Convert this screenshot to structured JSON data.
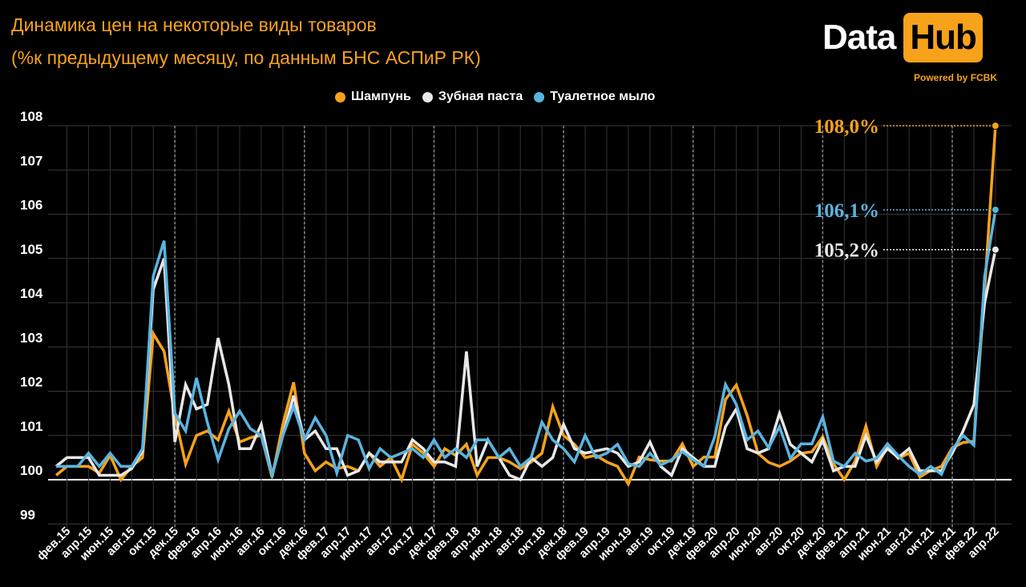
{
  "header": {
    "title_line1": "Динамика цен на некоторые виды товаров",
    "title_line2": "(%к предыдущему месяцу, по данным БНС АСПиР РК)"
  },
  "logo": {
    "part1": "Data",
    "part2": "Hub",
    "powered": "Powered by FCBK"
  },
  "colors": {
    "shampoo": "#f7a21b",
    "toothpaste": "#e8e8e8",
    "soap": "#5ab4e0",
    "accent": "#f7a21b"
  },
  "chart_data": {
    "type": "line",
    "title": "Динамика цен на некоторые виды товаров (%к предыдущему месяцу, по данным БНС АСПиР РК)",
    "xlabel": "",
    "ylabel": "",
    "ylim": [
      99,
      108
    ],
    "y_ticks": [
      "99",
      "100",
      "101",
      "102",
      "103",
      "104",
      "105",
      "106",
      "107",
      "108"
    ],
    "x_start": "янв.15",
    "x_tick_labels": [
      "фев.15",
      "апр.15",
      "июн.15",
      "авг.15",
      "окт.15",
      "дек.15",
      "фев.16",
      "апр.16",
      "июн.16",
      "авг.16",
      "окт.16",
      "дек.16",
      "фев.17",
      "апр.17",
      "июн.17",
      "авг.17",
      "окт.17",
      "дек.17",
      "фев.18",
      "апр.18",
      "июн.18",
      "авг.18",
      "окт.18",
      "дек.18",
      "фев.19",
      "апр.19",
      "июн.19",
      "авг.19",
      "окт.19",
      "дек.19",
      "фев.20",
      "апр.20",
      "июн.20",
      "авг.20",
      "окт.20",
      "дек.20",
      "фев.21",
      "апр.21",
      "июн.21",
      "авг.21",
      "окт.21",
      "дек.21",
      "фев.22",
      "апр.22"
    ],
    "legend_position": "top-center",
    "grid": true,
    "series": [
      {
        "name": "Шампунь",
        "color": "#f7a21b",
        "end_label": "108,0%",
        "values": [
          100.1,
          100.3,
          100.3,
          100.3,
          100.15,
          100.55,
          100.0,
          100.3,
          100.5,
          103.3,
          102.9,
          101.45,
          100.35,
          101.0,
          101.1,
          100.9,
          101.55,
          100.85,
          100.95,
          101.0,
          100.05,
          101.25,
          102.2,
          100.6,
          100.2,
          100.4,
          100.25,
          100.3,
          100.2,
          100.6,
          100.3,
          100.5,
          100.0,
          100.8,
          100.6,
          100.3,
          100.7,
          100.55,
          100.8,
          100.1,
          100.5,
          100.5,
          100.4,
          100.25,
          100.4,
          100.6,
          101.65,
          101.0,
          100.8,
          100.5,
          100.55,
          100.4,
          100.3,
          99.9,
          100.51,
          100.45,
          100.42,
          100.42,
          100.81,
          100.3,
          100.51,
          100.51,
          101.81,
          102.14,
          101.45,
          100.6,
          100.39,
          100.3,
          100.42,
          100.6,
          100.63,
          100.97,
          100.36,
          100.0,
          100.42,
          101.21,
          100.3,
          100.75,
          100.48,
          100.6,
          100.06,
          100.21,
          100.3,
          100.72,
          100.84,
          100.87,
          104.3,
          108.0
        ]
      },
      {
        "name": "Зубная паста",
        "color": "#e8e8e8",
        "end_label": "105,2%",
        "values": [
          100.3,
          100.5,
          100.5,
          100.5,
          100.1,
          100.1,
          100.1,
          100.25,
          100.65,
          104.3,
          105.0,
          100.85,
          102.15,
          101.6,
          101.7,
          103.2,
          102.15,
          100.7,
          100.7,
          101.25,
          100.1,
          101.0,
          101.9,
          100.9,
          101.1,
          100.7,
          100.7,
          100.1,
          100.2,
          100.6,
          100.4,
          100.4,
          100.4,
          100.9,
          100.7,
          100.4,
          100.4,
          100.3,
          102.9,
          100.3,
          100.9,
          100.5,
          100.1,
          100.0,
          100.5,
          100.3,
          100.5,
          101.25,
          100.7,
          100.6,
          100.65,
          100.7,
          100.6,
          100.3,
          100.4,
          100.85,
          100.3,
          100.1,
          100.7,
          100.5,
          100.3,
          100.3,
          101.2,
          101.6,
          100.7,
          100.6,
          100.7,
          101.5,
          100.8,
          100.6,
          100.4,
          100.9,
          100.2,
          100.3,
          100.3,
          101.0,
          100.4,
          100.7,
          100.5,
          100.7,
          100.2,
          100.2,
          100.2,
          100.6,
          101.1,
          101.7,
          104.0,
          105.2
        ]
      },
      {
        "name": "Туалетное мыло",
        "color": "#5ab4e0",
        "end_label": "106,1%",
        "values": [
          100.3,
          100.3,
          100.3,
          100.6,
          100.3,
          100.6,
          100.3,
          100.3,
          100.7,
          104.6,
          105.4,
          101.5,
          101.1,
          102.3,
          101.3,
          100.45,
          101.15,
          101.55,
          101.15,
          101.0,
          100.1,
          101.0,
          101.65,
          100.9,
          101.4,
          101.0,
          100.15,
          101.0,
          100.9,
          100.25,
          100.7,
          100.5,
          100.6,
          100.7,
          100.5,
          100.9,
          100.5,
          100.7,
          100.5,
          100.9,
          100.9,
          100.5,
          100.7,
          100.3,
          100.5,
          101.3,
          100.9,
          100.7,
          100.4,
          101.0,
          100.5,
          100.6,
          100.8,
          100.36,
          100.3,
          100.6,
          100.33,
          100.45,
          100.63,
          100.45,
          100.3,
          100.97,
          102.15,
          101.7,
          100.9,
          101.1,
          100.72,
          101.2,
          100.48,
          100.81,
          100.81,
          101.42,
          100.42,
          100.3,
          100.6,
          100.42,
          100.48,
          100.81,
          100.54,
          100.3,
          100.12,
          100.3,
          100.12,
          100.69,
          101.0,
          100.78,
          104.6,
          106.1
        ]
      }
    ]
  }
}
